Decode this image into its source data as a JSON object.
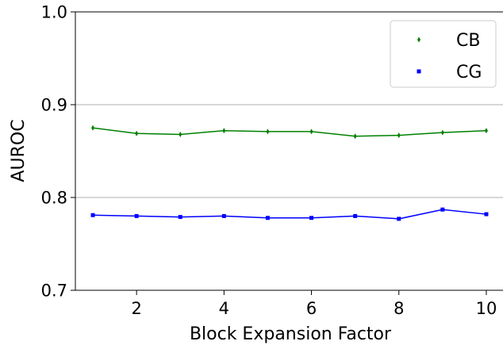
{
  "chart_data": {
    "type": "line",
    "xlabel": "Block Expansion Factor",
    "ylabel": "AUROC",
    "x": [
      1,
      2,
      3,
      4,
      5,
      6,
      7,
      8,
      9,
      10
    ],
    "xlim": [
      0.6,
      10.4
    ],
    "ylim": [
      0.7,
      1.0
    ],
    "xticks": [
      "2",
      "4",
      "6",
      "8",
      "10"
    ],
    "yticks": [
      "0.7",
      "0.8",
      "0.9",
      "1.0"
    ],
    "grid": "horizontal",
    "legend_position": "top-right",
    "series": [
      {
        "name": "CB",
        "color": "#008000",
        "marker": "thin-diamond",
        "values": [
          0.875,
          0.869,
          0.868,
          0.872,
          0.871,
          0.871,
          0.866,
          0.867,
          0.87,
          0.872
        ]
      },
      {
        "name": "CG",
        "color": "#0000ff",
        "marker": "square",
        "values": [
          0.781,
          0.78,
          0.779,
          0.78,
          0.778,
          0.778,
          0.78,
          0.777,
          0.787,
          0.782
        ]
      }
    ]
  }
}
